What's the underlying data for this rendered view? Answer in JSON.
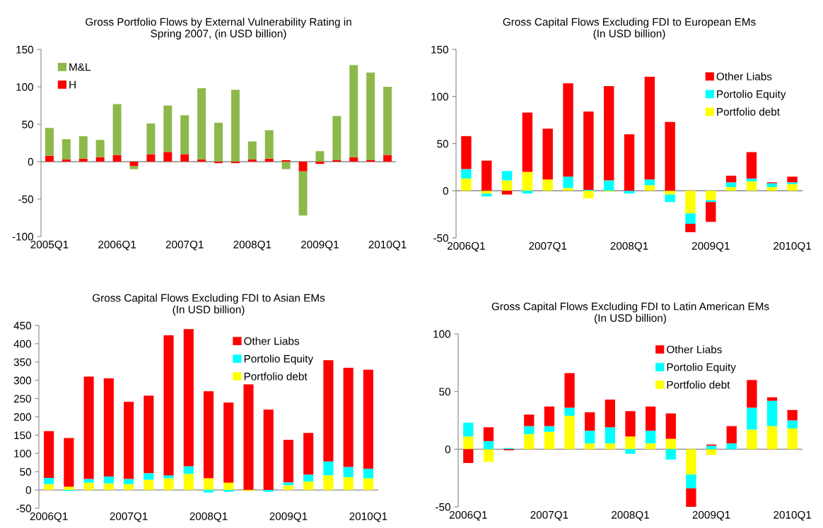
{
  "chart_data": [
    {
      "type": "bar",
      "stacked": true,
      "title": "Gross Portfolio Flows by External Vulnerability Rating in\nSpring 2007, (in USD billion)",
      "legend": "top left",
      "categories": [
        "2005Q1",
        null,
        null,
        null,
        "2006Q1",
        null,
        null,
        null,
        "2007Q1",
        null,
        null,
        null,
        "2008Q1",
        null,
        null,
        null,
        "2009Q1",
        null,
        null,
        null,
        "2010Q1"
      ],
      "ylim": [
        -100,
        150
      ],
      "yticks": [
        -100,
        -50,
        0,
        50,
        100,
        150
      ],
      "series": [
        {
          "name": "H",
          "color": "#ff0000",
          "values": [
            8,
            3,
            4,
            6,
            9,
            -6,
            10,
            13,
            10,
            3,
            -2,
            -2,
            3,
            4,
            2,
            -13,
            -3,
            2,
            6,
            2,
            9
          ]
        },
        {
          "name": "M&L",
          "color": "#8db84a",
          "values": [
            37,
            27,
            30,
            23,
            68,
            -4,
            41,
            62,
            52,
            95,
            52,
            96,
            24,
            38,
            -10,
            -59,
            14,
            59,
            123,
            117,
            91
          ]
        }
      ]
    },
    {
      "type": "bar",
      "stacked": true,
      "title": "Gross Capital Flows Excluding FDI to European EMs\n(In USD billion)",
      "legend": "top right",
      "categories": [
        "2006Q1",
        null,
        null,
        null,
        "2007Q1",
        null,
        null,
        null,
        "2008Q1",
        null,
        null,
        null,
        "2009Q1",
        null,
        null,
        null,
        "2010Q1"
      ],
      "ylim": [
        -50,
        150
      ],
      "yticks": [
        -50,
        0,
        50,
        100,
        150
      ],
      "series": [
        {
          "name": "Portfolio debt",
          "color": "#ffff00",
          "values": [
            13,
            -3,
            11,
            20,
            12,
            3,
            -8,
            -1,
            0,
            6,
            -4,
            -24,
            -10,
            4,
            10,
            4,
            7
          ]
        },
        {
          "name": "Portolio Equity",
          "color": "#00ffff",
          "values": [
            10,
            -3,
            10,
            -3,
            0,
            12,
            1,
            11,
            -3,
            6,
            -8,
            -11,
            -2,
            5,
            3,
            4,
            2
          ]
        },
        {
          "name": "Other Liabs",
          "color": "#ff0000",
          "values": [
            35,
            32,
            -4,
            63,
            54,
            99,
            83,
            100,
            60,
            109,
            73,
            -9,
            -21,
            7,
            28,
            1,
            6
          ]
        }
      ]
    },
    {
      "type": "bar",
      "stacked": true,
      "title": "Gross Capital Flows Excluding FDI to Asian EMs\n(In USD billion)",
      "legend": "top",
      "categories": [
        "2006Q1",
        null,
        null,
        null,
        "2007Q1",
        null,
        null,
        null,
        "2008Q1",
        null,
        null,
        null,
        "2009Q1",
        null,
        null,
        null,
        "2010Q1"
      ],
      "ylim": [
        -50,
        450
      ],
      "yticks": [
        -50,
        0,
        50,
        100,
        150,
        200,
        250,
        300,
        350,
        400,
        450
      ],
      "series": [
        {
          "name": "Portfolio debt",
          "color": "#ffff00",
          "values": [
            16,
            9,
            20,
            18,
            16,
            28,
            32,
            44,
            32,
            20,
            -3,
            0,
            13,
            23,
            40,
            35,
            32
          ]
        },
        {
          "name": "Portolio Equity",
          "color": "#00ffff",
          "values": [
            17,
            -3,
            10,
            19,
            14,
            18,
            8,
            21,
            -7,
            -5,
            0,
            -5,
            8,
            19,
            38,
            28,
            26
          ]
        },
        {
          "name": "Other Liabs",
          "color": "#ff0000",
          "values": [
            128,
            133,
            280,
            268,
            211,
            212,
            383,
            375,
            238,
            219,
            289,
            220,
            116,
            114,
            277,
            271,
            271
          ]
        }
      ]
    },
    {
      "type": "bar",
      "stacked": true,
      "title": "Gross Capital Flows Excluding FDI to Latin American EMs\n(In USD billion)",
      "legend": "top",
      "categories": [
        "2006Q1",
        null,
        null,
        null,
        "2007Q1",
        null,
        null,
        null,
        "2008Q1",
        null,
        null,
        null,
        "2009Q1",
        null,
        null,
        null,
        "2010Q1"
      ],
      "ylim": [
        -50,
        100
      ],
      "yticks": [
        -50,
        0,
        50,
        100
      ],
      "series": [
        {
          "name": "Portfolio debt",
          "color": "#ffff00",
          "values": [
            11,
            -11,
            0,
            13,
            15,
            29,
            5,
            5,
            11,
            5,
            9,
            -22,
            -5,
            0,
            17,
            20,
            18
          ]
        },
        {
          "name": "Portolio Equity",
          "color": "#00ffff",
          "values": [
            12,
            7,
            1,
            7,
            5,
            7,
            11,
            14,
            -4,
            11,
            -9,
            -12,
            3,
            5,
            19,
            22,
            7
          ]
        },
        {
          "name": "Other Liabs",
          "color": "#ff0000",
          "values": [
            -12,
            12,
            -1,
            10,
            17,
            30,
            16,
            24,
            22,
            21,
            22,
            -18,
            1,
            15,
            24,
            3,
            9
          ]
        }
      ]
    }
  ]
}
